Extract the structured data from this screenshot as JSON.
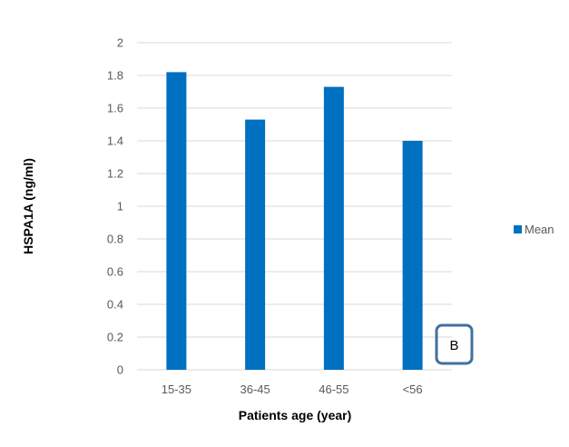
{
  "chart_data": {
    "type": "bar",
    "categories": [
      "15-35",
      "36-45",
      "46-55",
      "<56"
    ],
    "series": [
      {
        "name": "Mean",
        "values": [
          1.82,
          1.53,
          1.73,
          1.4
        ]
      }
    ],
    "xlabel": "Patients age (year)",
    "ylabel": "HSPA1A  (ng/ml)",
    "ylim": [
      0,
      2
    ],
    "yticks": [
      "0",
      "0.2",
      "0.4",
      "0.6",
      "0.8",
      "1",
      "1.2",
      "1.4",
      "1.6",
      "1.8",
      "2"
    ],
    "grid": true,
    "legend_position": "right",
    "colors": {
      "bar": "#0070C0",
      "grid": "#D9D9D9",
      "panel_box": "#41719C"
    }
  },
  "panel_label": "B"
}
